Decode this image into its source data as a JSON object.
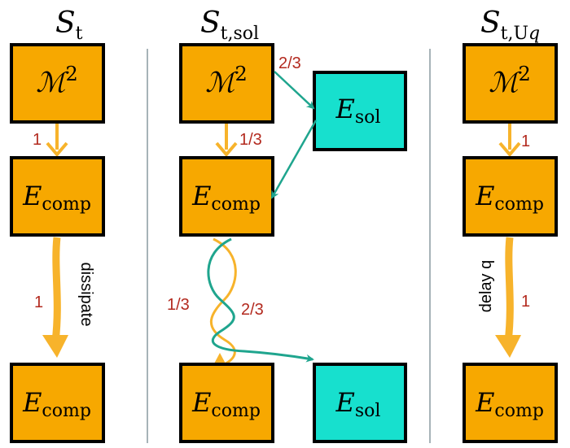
{
  "colors": {
    "orange": "#F7A800",
    "teal": "#17E0CE",
    "arrow_orange": "#F7B32B",
    "arrow_teal": "#1FA58E",
    "number_red": "#B32A1F"
  },
  "columns": [
    {
      "title_main": "S",
      "title_sub": "t",
      "boxes": [
        {
          "sym": "ℳ",
          "sup": "2"
        },
        {
          "sym": "E",
          "sub": "comp"
        },
        {
          "sym": "E",
          "sub": "comp"
        }
      ],
      "labels": {
        "first": "1",
        "second": "1",
        "process": "dissipate"
      }
    },
    {
      "title_main": "S",
      "title_sub": "t,sol",
      "boxes": [
        {
          "sym": "ℳ",
          "sup": "2"
        },
        {
          "sym": "E",
          "sub": "sol"
        },
        {
          "sym": "E",
          "sub": "comp"
        },
        {
          "sym": "E",
          "sub": "comp"
        },
        {
          "sym": "E",
          "sub": "sol"
        }
      ],
      "labels": {
        "to_sol": "2/3",
        "to_comp": "1/3",
        "left_fraction": "1/3",
        "right_fraction": "2/3"
      }
    },
    {
      "title_main": "S",
      "title_sub": "t,U",
      "title_sub_italic": "q",
      "boxes": [
        {
          "sym": "ℳ",
          "sup": "2"
        },
        {
          "sym": "E",
          "sub": "comp"
        },
        {
          "sym": "E",
          "sub": "comp"
        }
      ],
      "labels": {
        "first": "1",
        "second": "1",
        "process": "delay q"
      }
    }
  ]
}
